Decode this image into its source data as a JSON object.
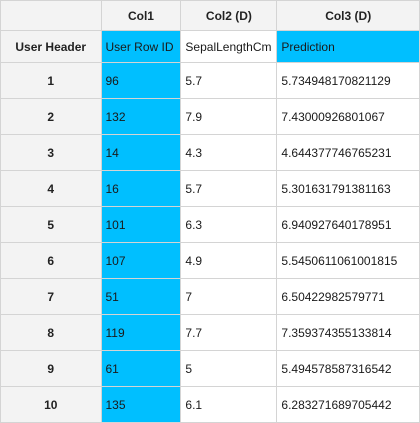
{
  "columns": [
    "Col1",
    "Col2 (D)",
    "Col3 (D)"
  ],
  "subheader": {
    "row_label": "User Header",
    "cells": [
      "User Row ID",
      "SepalLengthCm",
      "Prediction"
    ]
  },
  "rows": [
    {
      "index": "1",
      "cells": [
        "96",
        "5.7",
        "5.734948170821129"
      ]
    },
    {
      "index": "2",
      "cells": [
        "132",
        "7.9",
        "7.43000926801067"
      ]
    },
    {
      "index": "3",
      "cells": [
        "14",
        "4.3",
        "4.644377746765231"
      ]
    },
    {
      "index": "4",
      "cells": [
        "16",
        "5.7",
        "5.301631791381163"
      ]
    },
    {
      "index": "5",
      "cells": [
        "101",
        "6.3",
        "6.940927640178951"
      ]
    },
    {
      "index": "6",
      "cells": [
        "107",
        "4.9",
        "5.5450611061001815"
      ]
    },
    {
      "index": "7",
      "cells": [
        "51",
        "7",
        "6.50422982579771"
      ]
    },
    {
      "index": "8",
      "cells": [
        "119",
        "7.7",
        "7.359374355133814"
      ]
    },
    {
      "index": "9",
      "cells": [
        "61",
        "5",
        "5.494578587316542"
      ]
    },
    {
      "index": "10",
      "cells": [
        "135",
        "6.1",
        "6.283271689705442"
      ]
    }
  ],
  "colors": {
    "highlight": "#00bfff",
    "header_bg": "#f3f3f3",
    "border": "#d4d4d4"
  }
}
